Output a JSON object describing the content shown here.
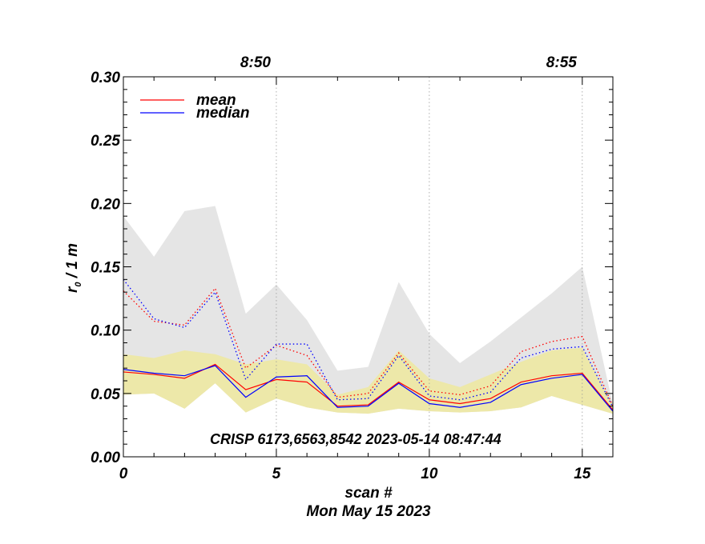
{
  "chart_data": {
    "type": "line",
    "annotation": "CRISP 6173,6563,8542 2023-05-14 08:47:44",
    "xlabel": "scan #",
    "date_label": "Mon May 15 2023",
    "ylabel_main": "r",
    "ylabel_sub": "0",
    "ylabel_rest": " / 1 m",
    "xlim": [
      0,
      16
    ],
    "ylim": [
      0,
      0.3
    ],
    "x_ticks": [
      0,
      5,
      10,
      15
    ],
    "x_tick_labels": [
      "0",
      "5",
      "10",
      "15"
    ],
    "y_ticks": [
      0,
      0.05,
      0.1,
      0.15,
      0.2,
      0.25,
      0.3
    ],
    "y_tick_labels": [
      "0.00",
      "0.05",
      "0.10",
      "0.15",
      "0.20",
      "0.25",
      "0.30"
    ],
    "top_ticks": [
      {
        "x": 5,
        "label": "8:50"
      },
      {
        "x": 15,
        "label": "8:55"
      }
    ],
    "vgrid_x": [
      5,
      10,
      15
    ],
    "x": [
      0,
      1,
      2,
      3,
      4,
      5,
      6,
      7,
      8,
      9,
      10,
      11,
      12,
      13,
      14,
      15,
      16
    ],
    "gray_band": {
      "upper": [
        0.19,
        0.158,
        0.194,
        0.198,
        0.113,
        0.136,
        0.108,
        0.068,
        0.071,
        0.138,
        0.097,
        0.074,
        0.091,
        0.11,
        0.129,
        0.15,
        0.041
      ],
      "lower": [
        0.049,
        0.05,
        0.038,
        0.058,
        0.035,
        0.046,
        0.039,
        0.035,
        0.034,
        0.038,
        0.036,
        0.035,
        0.036,
        0.039,
        0.048,
        0.041,
        0.034
      ]
    },
    "yellow_band": {
      "upper": [
        0.081,
        0.078,
        0.084,
        0.081,
        0.073,
        0.077,
        0.073,
        0.049,
        0.055,
        0.084,
        0.062,
        0.055,
        0.065,
        0.075,
        0.084,
        0.086,
        0.041
      ],
      "lower": [
        0.049,
        0.05,
        0.038,
        0.058,
        0.035,
        0.046,
        0.039,
        0.035,
        0.034,
        0.038,
        0.036,
        0.035,
        0.036,
        0.039,
        0.048,
        0.041,
        0.034
      ]
    },
    "series": [
      {
        "name": "mean",
        "color": "#ff0000",
        "style": "solid",
        "values": [
          0.067,
          0.065,
          0.062,
          0.073,
          0.053,
          0.061,
          0.059,
          0.04,
          0.041,
          0.059,
          0.045,
          0.042,
          0.046,
          0.059,
          0.064,
          0.066,
          0.037
        ]
      },
      {
        "name": "median",
        "color": "#0000ff",
        "style": "solid",
        "values": [
          0.069,
          0.066,
          0.064,
          0.072,
          0.047,
          0.063,
          0.064,
          0.039,
          0.04,
          0.058,
          0.042,
          0.039,
          0.043,
          0.057,
          0.062,
          0.065,
          0.036
        ]
      },
      {
        "name": "mean-upper",
        "color": "#ff0000",
        "style": "dotted",
        "values": [
          0.131,
          0.107,
          0.104,
          0.133,
          0.07,
          0.088,
          0.08,
          0.047,
          0.05,
          0.082,
          0.052,
          0.049,
          0.056,
          0.083,
          0.091,
          0.095,
          0.04
        ]
      },
      {
        "name": "median-upper",
        "color": "#0000ff",
        "style": "dotted",
        "values": [
          0.14,
          0.109,
          0.102,
          0.13,
          0.061,
          0.089,
          0.089,
          0.045,
          0.046,
          0.08,
          0.048,
          0.045,
          0.051,
          0.078,
          0.085,
          0.087,
          0.039
        ]
      }
    ],
    "legend": [
      {
        "label": "mean",
        "color": "#ff0000"
      },
      {
        "label": "median",
        "color": "#0000ff"
      }
    ],
    "colors": {
      "gray_band": "#e5e5e5",
      "yellow_band": "#ede8a9",
      "grid": "#9a9a9a"
    }
  }
}
